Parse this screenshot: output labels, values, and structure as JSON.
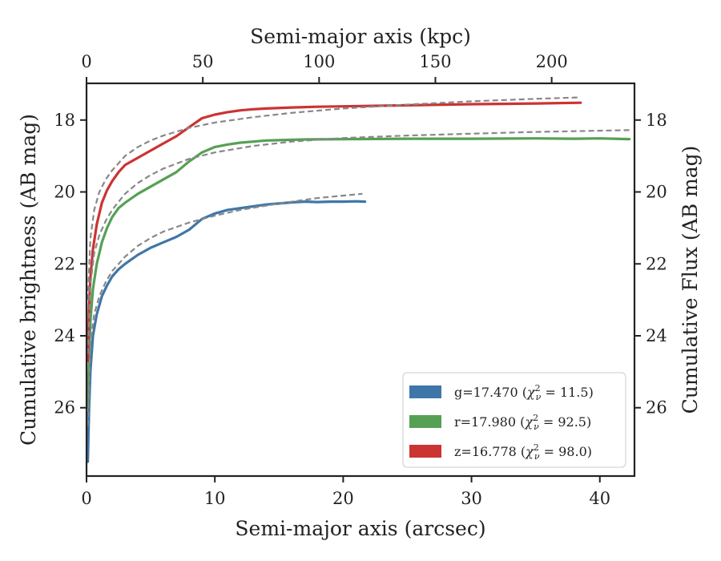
{
  "chart_data": {
    "type": "line",
    "xlabel": "Semi-major axis (arcsec)",
    "ylabel": "Cumulative brightness (AB mag)",
    "x2label": "Semi-major axis (kpc)",
    "y2label": "Cumulative Flux (AB mag)",
    "xlim": [
      0,
      42.7
    ],
    "ylim": [
      27.9,
      16.98
    ],
    "x2lim": [
      0,
      235.6
    ],
    "y_inverted": true,
    "xticks": [
      0,
      10,
      20,
      30,
      40
    ],
    "yticks": [
      18,
      20,
      22,
      24,
      26
    ],
    "x2ticks": [
      0,
      50,
      100,
      150,
      200
    ],
    "grid": false,
    "legend_position": "lower-right",
    "series": [
      {
        "name": "g=17.470 (χ²ν = 11.5)",
        "label_main": "g=17.470 (",
        "label_eq": " = 11.5)",
        "color": "#3f76a8",
        "x": [
          0.1,
          0.2,
          0.3,
          0.5,
          0.8,
          1.2,
          1.6,
          2.0,
          2.5,
          3,
          4,
          5,
          6,
          7,
          8,
          9,
          10,
          11,
          12,
          13,
          14,
          15,
          16,
          17,
          18,
          19,
          20,
          21,
          21.7
        ],
        "y": [
          27.5,
          26.0,
          25.0,
          24.0,
          23.4,
          22.9,
          22.6,
          22.35,
          22.15,
          22.0,
          21.75,
          21.55,
          21.4,
          21.25,
          21.05,
          20.75,
          20.6,
          20.5,
          20.45,
          20.4,
          20.35,
          20.32,
          20.29,
          20.27,
          20.28,
          20.27,
          20.27,
          20.26,
          20.27
        ]
      },
      {
        "name": "r=17.980 (χ²ν = 92.5)",
        "label_main": "r=17.980 (",
        "label_eq": " = 92.5)",
        "color": "#55a055",
        "x": [
          0.1,
          0.2,
          0.3,
          0.5,
          0.8,
          1.2,
          1.6,
          2.0,
          2.5,
          3,
          4,
          5,
          6,
          7,
          8,
          9,
          10,
          11,
          12,
          13,
          14,
          15,
          17,
          20,
          25,
          30,
          35,
          38,
          40,
          42.3
        ],
        "y": [
          26.0,
          24.6,
          23.6,
          22.7,
          22.0,
          21.4,
          21.0,
          20.7,
          20.45,
          20.3,
          20.05,
          19.85,
          19.65,
          19.45,
          19.15,
          18.9,
          18.75,
          18.68,
          18.63,
          18.6,
          18.57,
          18.56,
          18.54,
          18.53,
          18.52,
          18.52,
          18.51,
          18.52,
          18.51,
          18.53
        ]
      },
      {
        "name": "z=16.778 (χ²ν = 98.0)",
        "label_main": "z=16.778 (",
        "label_eq": " = 98.0)",
        "color": "#cc3333",
        "x": [
          0.1,
          0.2,
          0.3,
          0.5,
          0.8,
          1.2,
          1.6,
          2.0,
          2.5,
          3,
          4,
          5,
          6,
          7,
          8,
          9,
          10,
          11,
          12,
          13,
          14,
          16,
          18,
          20,
          25,
          30,
          35,
          38.5
        ],
        "y": [
          24.7,
          23.2,
          22.4,
          21.6,
          20.9,
          20.3,
          19.95,
          19.7,
          19.45,
          19.25,
          19.05,
          18.85,
          18.65,
          18.45,
          18.2,
          17.95,
          17.85,
          17.78,
          17.73,
          17.7,
          17.68,
          17.65,
          17.63,
          17.62,
          17.59,
          17.56,
          17.54,
          17.52
        ]
      }
    ],
    "model_fits": {
      "color": "#888888",
      "curves": [
        {
          "x": [
            0.1,
            0.3,
            0.6,
            1,
            1.5,
            2,
            3,
            4,
            5,
            6,
            8,
            10,
            12,
            15,
            18,
            21.5
          ],
          "y": [
            26.5,
            24.2,
            23.4,
            22.9,
            22.5,
            22.2,
            21.8,
            21.5,
            21.28,
            21.1,
            20.85,
            20.66,
            20.5,
            20.32,
            20.17,
            20.05
          ]
        },
        {
          "x": [
            0.1,
            0.3,
            0.6,
            1,
            1.5,
            2,
            3,
            4,
            5,
            6,
            8,
            10,
            13,
            16,
            20,
            25,
            30,
            35,
            42.5
          ],
          "y": [
            24.5,
            22.6,
            21.7,
            21.2,
            20.8,
            20.5,
            20.05,
            19.75,
            19.53,
            19.35,
            19.08,
            18.9,
            18.72,
            18.6,
            18.5,
            18.43,
            18.38,
            18.33,
            18.28
          ]
        },
        {
          "x": [
            0.1,
            0.3,
            0.6,
            1,
            1.5,
            2,
            3,
            4,
            5,
            6,
            8,
            10,
            13,
            16,
            20,
            25,
            30,
            35,
            38.5
          ],
          "y": [
            23.0,
            21.3,
            20.5,
            20.0,
            19.65,
            19.4,
            19.0,
            18.75,
            18.57,
            18.43,
            18.22,
            18.07,
            17.92,
            17.8,
            17.68,
            17.57,
            17.48,
            17.41,
            17.37
          ]
        }
      ]
    }
  }
}
